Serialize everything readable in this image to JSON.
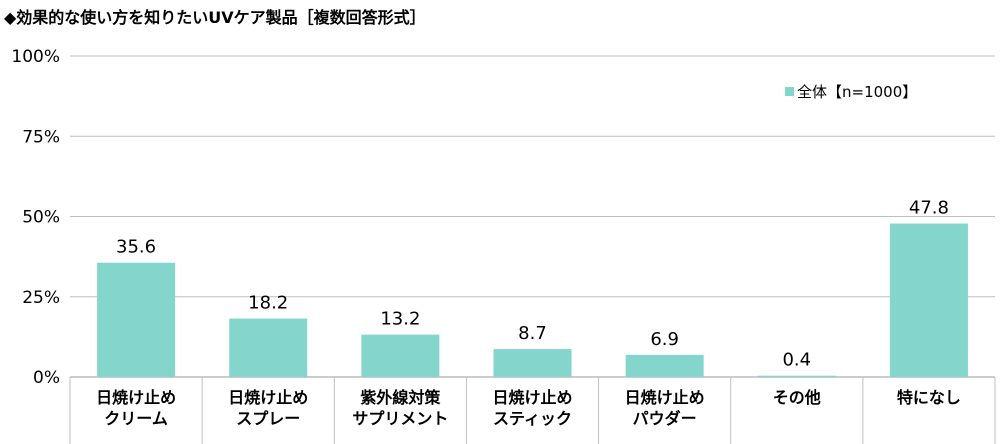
{
  "title": "◆効果的な使い方を知りたいUVケア製品［複数回答形式］",
  "chart_data": {
    "type": "bar",
    "categories": [
      [
        "日焼け止め",
        "クリーム"
      ],
      [
        "日焼け止め",
        "スプレー"
      ],
      [
        "紫外線対策",
        "サプリメント"
      ],
      [
        "日焼け止め",
        "スティック"
      ],
      [
        "日焼け止め",
        "パウダー"
      ],
      [
        "その他"
      ],
      [
        "特になし"
      ]
    ],
    "series": [
      {
        "name": "全体【n=1000】",
        "values": [
          35.6,
          18.2,
          13.2,
          8.7,
          6.9,
          0.4,
          47.8
        ],
        "labels": [
          "35.6",
          "18.2",
          "13.2",
          "8.7",
          "6.9",
          "0.4",
          "47.8"
        ]
      }
    ],
    "ylim": [
      0,
      100
    ],
    "yticks": [
      0,
      25,
      50,
      75,
      100
    ],
    "ytick_labels": [
      "0%",
      "25%",
      "50%",
      "75%",
      "100%"
    ],
    "grid": true,
    "legend_position": "top-right",
    "color": "#84d5cb",
    "grid_color": "#bfbfbf",
    "axis_color": "#9a9a9a"
  }
}
